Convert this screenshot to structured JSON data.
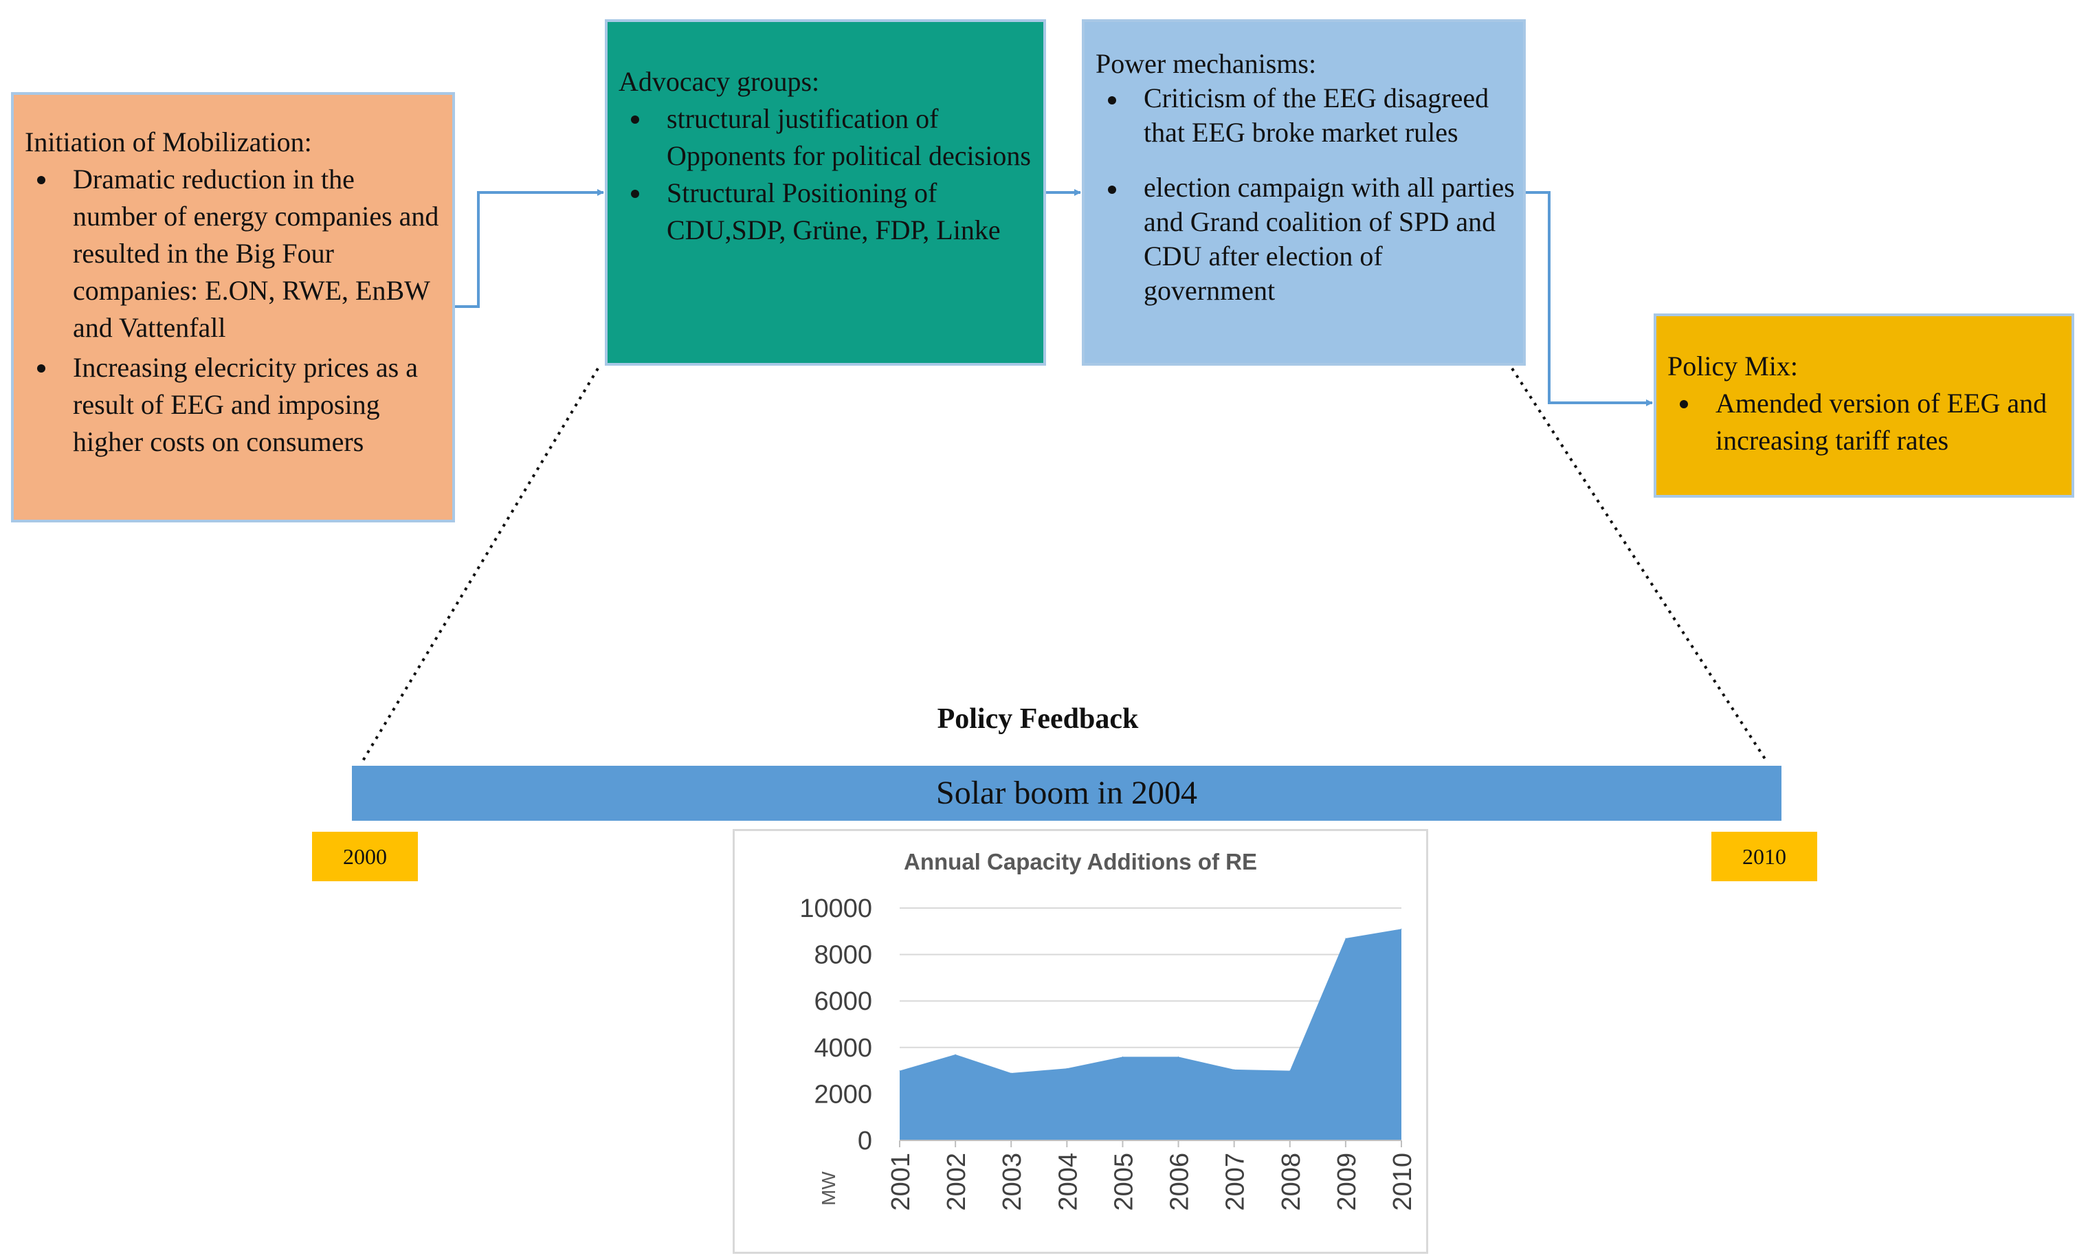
{
  "boxes": {
    "initiation": {
      "heading": "Initiation of Mobilization:",
      "bullets": [
        "Dramatic reduction in the number of energy companies and resulted in the Big Four companies: E.ON, RWE, EnBW and Vattenfall",
        "Increasing elecricity prices as a result of EEG and imposing  higher costs on consumers"
      ],
      "color": "#f4b183"
    },
    "advocacy": {
      "heading": "Advocacy  groups:",
      "bullets": [
        "structural justification of Opponents for political decisions",
        "Structural Positioning of CDU,SDP, Grüne, FDP, Linke"
      ],
      "color": "#0e9e86"
    },
    "power": {
      "heading": "Power mechanisms:",
      "bullets": [
        " Criticism of the EEG disagreed that  EEG broke market rules",
        "election campaign with all parties and Grand coalition of SPD and CDU after election of government"
      ],
      "color": "#9dc3e6"
    },
    "policy_mix": {
      "heading": "Policy Mix:",
      "bullets": [
        "Amended version of EEG and increasing tariff rates"
      ],
      "color": "#f2b600"
    }
  },
  "feedback": {
    "title": "Policy Feedback",
    "bar_label": "Solar boom in 2004",
    "start_year": "2000",
    "end_year": "2010",
    "bar_color": "#5b9bd5",
    "year_color": "#ffc000"
  },
  "chart_data": {
    "type": "area",
    "title": "Annual Capacity Additions of RE",
    "ylabel": "MW",
    "xlabel": "",
    "categories": [
      "2001",
      "2002",
      "2003",
      "2004",
      "2005",
      "2006",
      "2007",
      "2008",
      "2009",
      "2010"
    ],
    "values": [
      3000,
      3700,
      2900,
      3100,
      3600,
      3600,
      3050,
      3000,
      8700,
      9100
    ],
    "ylim": [
      0,
      10000
    ],
    "yticks": [
      "0",
      "2000",
      "4000",
      "6000",
      "8000",
      "10000"
    ],
    "grid": true,
    "legend": "none",
    "color": "#5b9bd5"
  }
}
